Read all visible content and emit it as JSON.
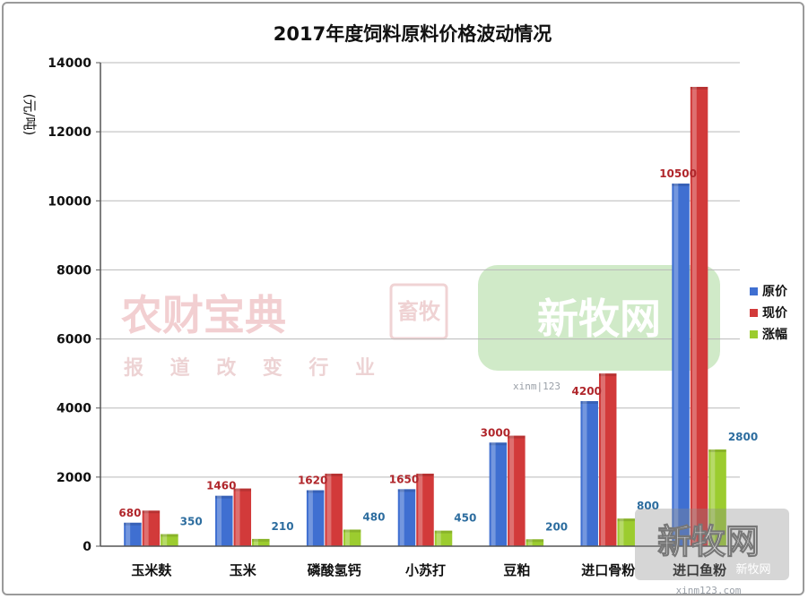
{
  "chart_data": {
    "type": "bar",
    "title": "2017年度饲料原料价格波动情况",
    "ylabel": "(元/吨)",
    "xlabel": "",
    "ylim": [
      0,
      14000
    ],
    "yticks": [
      0,
      2000,
      4000,
      6000,
      8000,
      10000,
      12000,
      14000
    ],
    "grid": true,
    "legend_position": "right",
    "categories": [
      "玉米麸",
      "玉米",
      "磷酸氢钙",
      "小苏打",
      "豆粕",
      "进口骨粉",
      "进口鱼粉"
    ],
    "series": [
      {
        "name": "原价",
        "color": "#3f6fd1",
        "values": [
          680,
          1460,
          1620,
          1650,
          3000,
          4200,
          10500
        ],
        "labels": [
          "680",
          "1460",
          "1620",
          "1650",
          "3000",
          "4200",
          "10500"
        ]
      },
      {
        "name": "现价",
        "color": "#d23a3a",
        "values": [
          1030,
          1670,
          2100,
          2100,
          3200,
          5000,
          13300
        ],
        "labels": []
      },
      {
        "name": "涨幅",
        "color": "#9ccc2f",
        "values": [
          350,
          210,
          480,
          450,
          200,
          800,
          2800
        ],
        "labels": [
          "350",
          "210",
          "480",
          "450",
          "200",
          "800",
          "2800"
        ]
      }
    ]
  },
  "watermarks": {
    "left_main": "农财宝典",
    "left_seal": "畜牧",
    "left_sub": "报道改变行业",
    "center_main": "新牧网",
    "center_small": "xinm|123",
    "corner_main": "新牧网",
    "corner_sub": "新牧网",
    "corner_url": "xinm123.com"
  }
}
